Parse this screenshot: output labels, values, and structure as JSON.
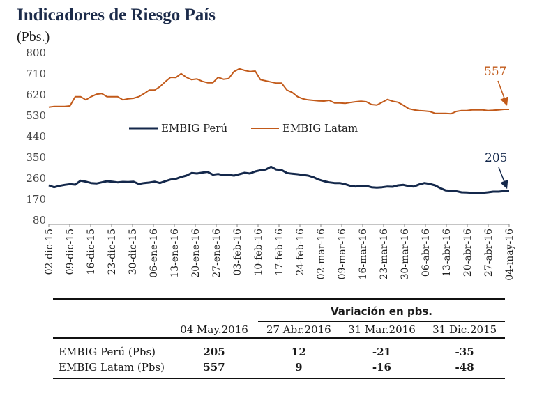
{
  "title": "Indicadores de Riesgo País",
  "unit": "(Pbs.)",
  "chart_data": {
    "type": "line",
    "title": "Indicadores de Riesgo País",
    "ylabel": "(Pbs.)",
    "ylim": [
      80,
      800
    ],
    "yticks": [
      "800",
      "710",
      "620",
      "530",
      "440",
      "350",
      "260",
      "170",
      "80"
    ],
    "xticks": [
      "02-dic-15",
      "09-dic-15",
      "16-dic-15",
      "23-dic-15",
      "30-dic-15",
      "06-ene-16",
      "13-ene-16",
      "20-ene-16",
      "27-ene-16",
      "03-feb-16",
      "10-feb-16",
      "17-feb-16",
      "24-feb-16",
      "02-mar-16",
      "09-mar-16",
      "16-mar-16",
      "23-mar-16",
      "30-mar-16",
      "06-abr-16",
      "13-abr-16",
      "20-abr-16",
      "27-abr-16",
      "04-may-16"
    ],
    "legend_position": "middle-left",
    "series": [
      {
        "name": "EMBIG Perú",
        "color": "#14284b",
        "end_label": "205",
        "values": [
          230,
          222,
          228,
          232,
          235,
          233,
          250,
          246,
          240,
          238,
          243,
          248,
          246,
          243,
          245,
          244,
          246,
          236,
          240,
          242,
          246,
          240,
          248,
          255,
          258,
          266,
          272,
          283,
          281,
          285,
          288,
          276,
          279,
          274,
          275,
          272,
          278,
          284,
          281,
          290,
          295,
          298,
          310,
          298,
          296,
          283,
          280,
          278,
          275,
          272,
          265,
          255,
          248,
          243,
          240,
          240,
          235,
          228,
          225,
          228,
          228,
          222,
          220,
          222,
          225,
          224,
          230,
          232,
          227,
          225,
          234,
          240,
          236,
          230,
          218,
          208,
          207,
          205,
          200,
          199,
          198,
          198,
          198,
          200,
          203,
          203,
          205,
          205
        ]
      },
      {
        "name": "EMBIG Latam",
        "color": "#c25a1a",
        "end_label": "557",
        "values": [
          567,
          570,
          570,
          570,
          572,
          612,
          612,
          598,
          612,
          622,
          625,
          612,
          612,
          612,
          598,
          603,
          605,
          612,
          625,
          640,
          640,
          655,
          676,
          695,
          694,
          711,
          695,
          685,
          688,
          678,
          672,
          672,
          695,
          687,
          690,
          720,
          732,
          725,
          720,
          722,
          685,
          680,
          675,
          670,
          670,
          640,
          630,
          612,
          603,
          598,
          596,
          594,
          593,
          596,
          585,
          585,
          583,
          587,
          590,
          592,
          590,
          578,
          576,
          588,
          600,
          592,
          588,
          575,
          560,
          555,
          552,
          550,
          548,
          540,
          540,
          540,
          538,
          548,
          552,
          552,
          555,
          555,
          555,
          552,
          553,
          555,
          557,
          557
        ]
      }
    ]
  },
  "table": {
    "group_header": "Variación en pbs.",
    "columns": [
      "04 May.2016",
      "27 Abr.2016",
      "31 Mar.2016",
      "31 Dic.2015"
    ],
    "rows": [
      {
        "label": "EMBIG Perú (Pbs)",
        "values": [
          "205",
          "12",
          "-21",
          "-35"
        ]
      },
      {
        "label": "EMBIG Latam (Pbs)",
        "values": [
          "557",
          "9",
          "-16",
          "-48"
        ]
      }
    ]
  }
}
